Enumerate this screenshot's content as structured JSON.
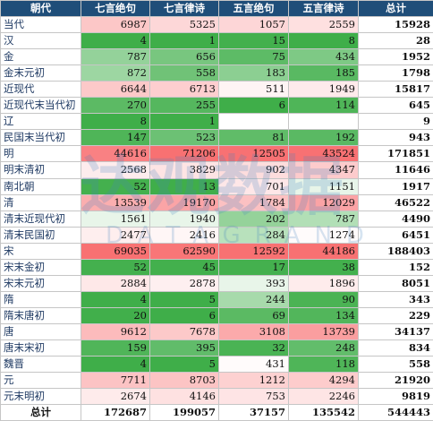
{
  "headers": [
    "朝代",
    "七言绝句",
    "七言律诗",
    "五言绝句",
    "五言律诗",
    "总计"
  ],
  "rows": [
    {
      "dynasty": "当代",
      "v": [
        6987,
        5325,
        1057,
        2559
      ],
      "total": 15928
    },
    {
      "dynasty": "汉",
      "v": [
        4,
        1,
        15,
        8
      ],
      "total": 28
    },
    {
      "dynasty": "金",
      "v": [
        787,
        656,
        75,
        434
      ],
      "total": 1952
    },
    {
      "dynasty": "金末元初",
      "v": [
        872,
        558,
        183,
        185
      ],
      "total": 1798
    },
    {
      "dynasty": "近现代",
      "v": [
        6644,
        6713,
        511,
        1949
      ],
      "total": 15817
    },
    {
      "dynasty": "近现代末当代初",
      "v": [
        270,
        255,
        6,
        114
      ],
      "total": 645
    },
    {
      "dynasty": "辽",
      "v": [
        8,
        1,
        null,
        null
      ],
      "total": 9
    },
    {
      "dynasty": "民国末当代初",
      "v": [
        147,
        523,
        81,
        192
      ],
      "total": 943
    },
    {
      "dynasty": "明",
      "v": [
        44616,
        71206,
        12505,
        43524
      ],
      "total": 171851
    },
    {
      "dynasty": "明末清初",
      "v": [
        2568,
        3829,
        902,
        4347
      ],
      "total": 11646
    },
    {
      "dynasty": "南北朝",
      "v": [
        52,
        13,
        701,
        1151
      ],
      "total": 1917
    },
    {
      "dynasty": "清",
      "v": [
        13539,
        19170,
        1784,
        12029
      ],
      "total": 46522
    },
    {
      "dynasty": "清末近现代初",
      "v": [
        1561,
        1940,
        202,
        787
      ],
      "total": 4490
    },
    {
      "dynasty": "清末民国初",
      "v": [
        2477,
        2416,
        284,
        1274
      ],
      "total": 6451
    },
    {
      "dynasty": "宋",
      "v": [
        69035,
        62590,
        12592,
        44186
      ],
      "total": 188403
    },
    {
      "dynasty": "宋末金初",
      "v": [
        52,
        45,
        17,
        38
      ],
      "total": 152
    },
    {
      "dynasty": "宋末元初",
      "v": [
        2884,
        2878,
        393,
        1896
      ],
      "total": 8051
    },
    {
      "dynasty": "隋",
      "v": [
        4,
        5,
        244,
        90
      ],
      "total": 343
    },
    {
      "dynasty": "隋末唐初",
      "v": [
        20,
        6,
        69,
        134
      ],
      "total": 229
    },
    {
      "dynasty": "唐",
      "v": [
        9612,
        7678,
        3108,
        13739
      ],
      "total": 34137
    },
    {
      "dynasty": "唐末宋初",
      "v": [
        159,
        395,
        32,
        248
      ],
      "total": 834
    },
    {
      "dynasty": "魏晋",
      "v": [
        4,
        5,
        431,
        118
      ],
      "total": 558
    },
    {
      "dynasty": "元",
      "v": [
        7711,
        8703,
        1212,
        4294
      ],
      "total": 21920
    },
    {
      "dynasty": "元末明初",
      "v": [
        2674,
        4146,
        753,
        2246
      ],
      "total": 9819
    }
  ],
  "footer": {
    "label": "总计",
    "v": [
      "172687",
      "199057",
      "37157",
      "135542"
    ],
    "total": "544443"
  },
  "watermark": {
    "big": "达观数据",
    "small": "DATAGRAND"
  },
  "colors": {
    "header_bg": "#1f4e79",
    "green": "#3fae49",
    "red": "#f8696b",
    "neutral": "#ffffff"
  }
}
